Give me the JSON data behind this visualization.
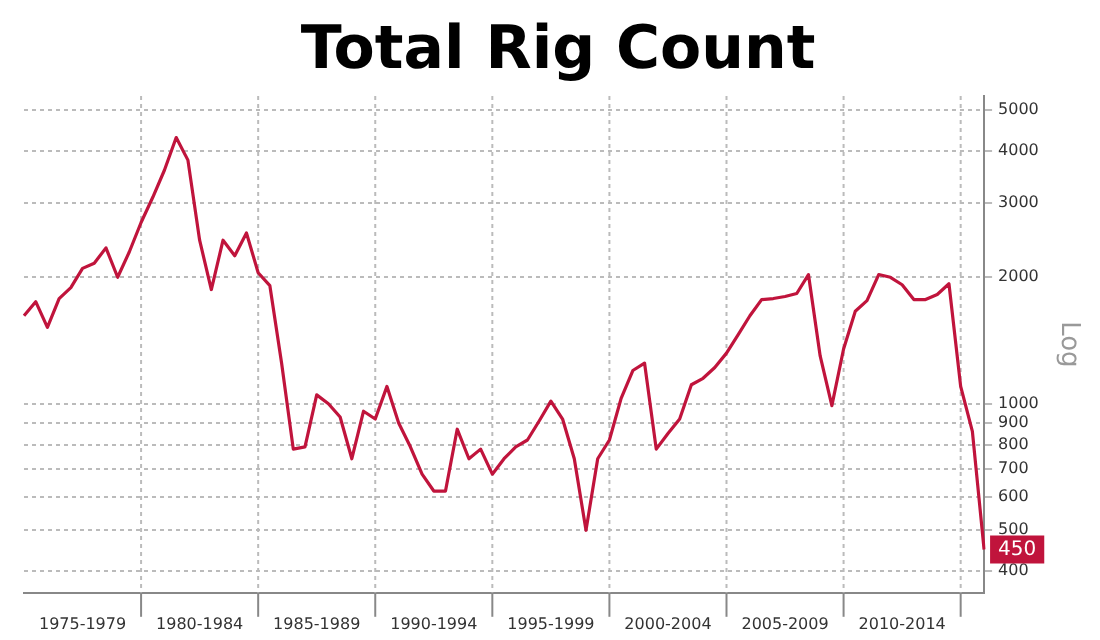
{
  "chart_data": {
    "type": "line",
    "title": "Total Rig Count",
    "ylabel": "Log",
    "log": "y",
    "grid": true,
    "legend": false,
    "marker": "none",
    "line_style": "solid",
    "ylim": [
      355,
      5400
    ],
    "yticks": [
      400,
      500,
      600,
      700,
      800,
      900,
      1000,
      2000,
      3000,
      4000,
      5000
    ],
    "annotations": [
      "450"
    ],
    "categories": [
      null,
      null,
      null,
      null,
      null,
      "1975-1979",
      null,
      null,
      null,
      null,
      null,
      null,
      null,
      null,
      null,
      "1980-1984",
      null,
      null,
      null,
      null,
      null,
      null,
      null,
      null,
      null,
      "1985-1989",
      null,
      null,
      null,
      null,
      null,
      null,
      null,
      null,
      null,
      "1990-1994",
      null,
      null,
      null,
      null,
      null,
      null,
      null,
      null,
      null,
      "1995-1999",
      null,
      null,
      null,
      null,
      null,
      null,
      null,
      null,
      null,
      "2000-2004",
      null,
      null,
      null,
      null,
      null,
      null,
      null,
      null,
      null,
      "2005-2009",
      null,
      null,
      null,
      null,
      null,
      null,
      null,
      null,
      null,
      "2010-2014",
      null,
      null,
      null,
      null,
      null,
      null,
      null
    ],
    "series": [
      {
        "color": "#c0143c",
        "values": [
          1620,
          1750,
          1520,
          1780,
          1890,
          2100,
          2160,
          2350,
          2000,
          2300,
          2700,
          3100,
          3600,
          4300,
          3800,
          2450,
          1870,
          2450,
          2250,
          2550,
          2050,
          1910,
          1250,
          780,
          790,
          1050,
          1000,
          930,
          740,
          960,
          920,
          1100,
          900,
          790,
          680,
          620,
          620,
          870,
          740,
          780,
          680,
          740,
          790,
          820,
          910,
          1015,
          920,
          740,
          500,
          740,
          820,
          1030,
          1200,
          1250,
          780,
          850,
          920,
          1110,
          1150,
          1220,
          1320,
          1460,
          1620,
          1770,
          1780,
          1800,
          1830,
          2030,
          1300,
          990,
          1350,
          1660,
          1760,
          2030,
          2000,
          1920,
          1770,
          1770,
          1820,
          1930,
          1100,
          860,
          450
        ]
      }
    ]
  }
}
